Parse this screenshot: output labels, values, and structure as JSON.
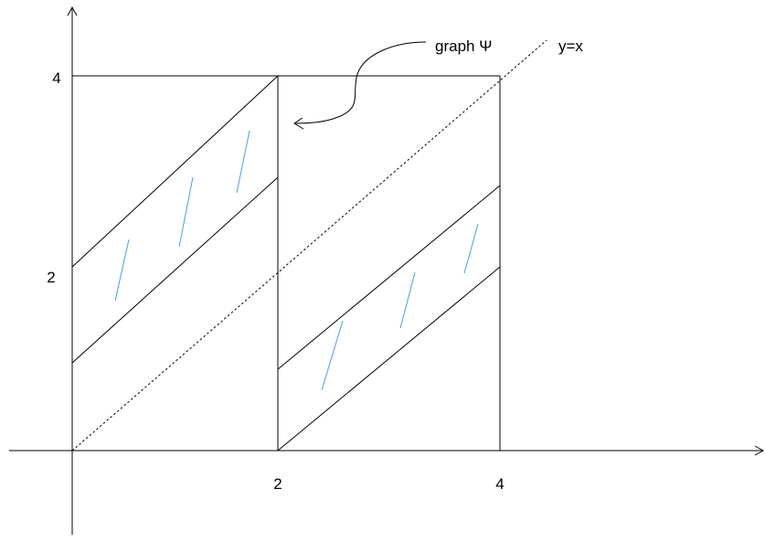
{
  "labels": {
    "graph": "graph Ψ",
    "identity": "y=x"
  },
  "ticks": {
    "x": [
      "2",
      "4"
    ],
    "y": [
      "2",
      "4"
    ]
  },
  "colors": {
    "axes": "#000000",
    "hatch": "#4a9fe0"
  }
}
